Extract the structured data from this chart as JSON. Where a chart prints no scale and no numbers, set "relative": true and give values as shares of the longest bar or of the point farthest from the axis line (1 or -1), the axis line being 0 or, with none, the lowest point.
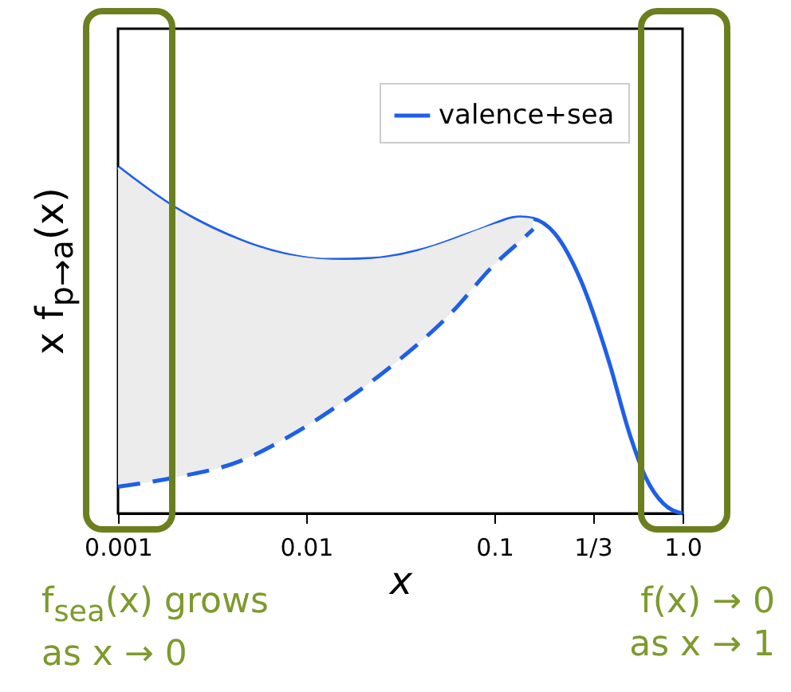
{
  "chart_data": {
    "type": "line",
    "xlabel": "x",
    "ylabel": "x f$_{p→a}$(x)",
    "relative": true,
    "log": "x",
    "xlim": [
      0.001,
      1
    ],
    "xticks": [
      0.001,
      0.01,
      0.1,
      {
        "value": 0.3333,
        "label": "1/3"
      },
      {
        "value": 1,
        "label": "1.0"
      }
    ],
    "legend": "top right",
    "grid": false,
    "annotations": [
      "f$_{sea}$(x) grows\nas x → 0",
      "f(x) → 0\nas x → 1"
    ],
    "series": [
      {
        "name": "valence+sea",
        "color": "#1f5fe8",
        "line_style": "solid",
        "x": [
          0.001,
          0.00202,
          0.00318,
          0.00608,
          0.0132,
          0.0223,
          0.0427,
          0.0817,
          0.137,
          0.161,
          0.209,
          0.289,
          0.405,
          0.525,
          0.637,
          0.792,
          1
        ],
        "values": [
          1,
          0.881,
          0.824,
          0.763,
          0.732,
          0.735,
          0.763,
          0.816,
          0.855,
          0.851,
          0.809,
          0.671,
          0.441,
          0.227,
          0.104,
          0.028,
          0
        ]
      },
      {
        "color": "#1f5fe8",
        "line_style": "dashed",
        "x": [
          0.001,
          0.00202,
          0.0044,
          0.0084,
          0.0161,
          0.0308,
          0.059,
          0.0993,
          0.137,
          0.161
        ],
        "values": [
          0.077,
          0.104,
          0.15,
          0.227,
          0.326,
          0.441,
          0.579,
          0.717,
          0.786,
          0.821
        ],
        "lower": [
          0.077,
          0.104,
          0.15,
          0.227,
          0.326,
          0.441,
          0.579,
          0.717,
          0.786,
          0.821
        ],
        "upper": [
          1,
          0.881,
          0.79,
          0.745,
          0.732,
          0.745,
          0.79,
          0.835,
          0.855,
          0.851
        ]
      }
    ]
  }
}
